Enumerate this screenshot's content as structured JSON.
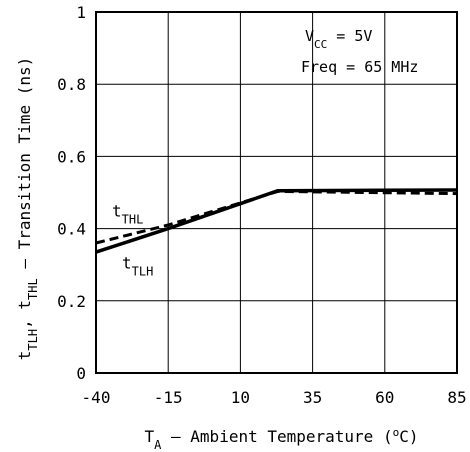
{
  "chart_data": {
    "type": "line",
    "xlabel": {
      "main": "T",
      "sub": "A",
      "rest": " – Ambient Temperature (",
      "sup": "o",
      "end": "C)"
    },
    "ylabel": {
      "parts": [
        [
          "t",
          ""
        ],
        [
          "TLH",
          "sub"
        ],
        [
          ", t",
          ""
        ],
        [
          "THL",
          "sub"
        ],
        [
          " – Transition Time (ns)",
          ""
        ]
      ]
    },
    "x_ticks": [
      "-40",
      "-15",
      "10",
      "35",
      "60",
      "85"
    ],
    "y_ticks": [
      "0",
      "0.2",
      "0.4",
      "0.6",
      "0.8",
      "1"
    ],
    "xlim": [
      -40,
      85
    ],
    "ylim": [
      0,
      1
    ],
    "grid": true,
    "annotations": {
      "vcc": {
        "main": "V",
        "sub": "CC",
        "rest": " = 5V"
      },
      "freq": "Freq = 65 MHz"
    },
    "series": [
      {
        "name": {
          "main": "t",
          "sub": "TLH"
        },
        "style": "solid",
        "color": "#000000",
        "points": [
          [
            -40,
            0.335
          ],
          [
            -15,
            0.4
          ],
          [
            23,
            0.505
          ],
          [
            85,
            0.507
          ]
        ]
      },
      {
        "name": {
          "main": "t",
          "sub": "THL"
        },
        "style": "dashed",
        "color": "#000000",
        "points": [
          [
            -40,
            0.36
          ],
          [
            -15,
            0.41
          ],
          [
            23,
            0.503
          ],
          [
            85,
            0.497
          ]
        ]
      }
    ]
  }
}
